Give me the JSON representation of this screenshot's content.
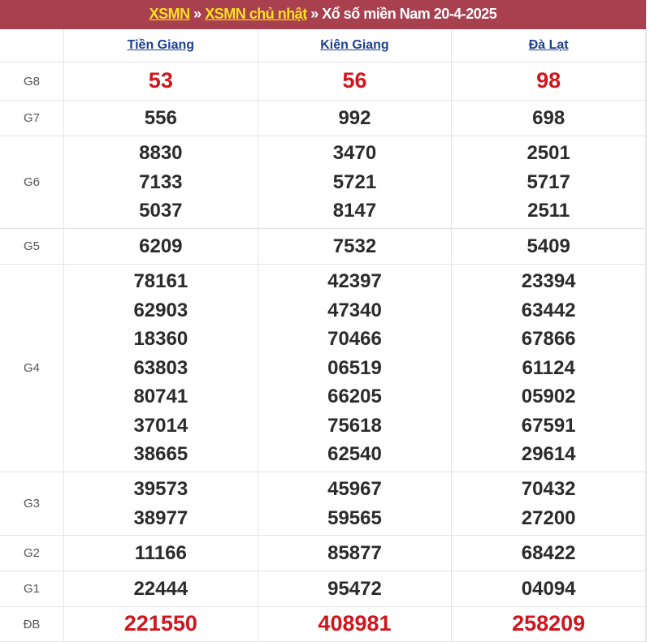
{
  "breadcrumb": {
    "link1": "XSMN",
    "sep": " » ",
    "link2": "XSMN chủ nhật",
    "rest": " » Xổ số miền Nam 20-4-2025"
  },
  "provinces": [
    "Tiền Giang",
    "Kiên Giang",
    "Đà Lạt"
  ],
  "accent_color": "#a8404f",
  "prizes": [
    {
      "label": "G8",
      "highlight": true,
      "values": [
        [
          "53"
        ],
        [
          "56"
        ],
        [
          "98"
        ]
      ]
    },
    {
      "label": "G7",
      "values": [
        [
          "556"
        ],
        [
          "992"
        ],
        [
          "698"
        ]
      ]
    },
    {
      "label": "G6",
      "values": [
        [
          "8830",
          "7133",
          "5037"
        ],
        [
          "3470",
          "5721",
          "8147"
        ],
        [
          "2501",
          "5717",
          "2511"
        ]
      ]
    },
    {
      "label": "G5",
      "values": [
        [
          "6209"
        ],
        [
          "7532"
        ],
        [
          "5409"
        ]
      ]
    },
    {
      "label": "G4",
      "values": [
        [
          "78161",
          "62903",
          "18360",
          "63803",
          "80741",
          "37014",
          "38665"
        ],
        [
          "42397",
          "47340",
          "70466",
          "06519",
          "66205",
          "75618",
          "62540"
        ],
        [
          "23394",
          "63442",
          "67866",
          "61124",
          "05902",
          "67591",
          "29614"
        ]
      ]
    },
    {
      "label": "G3",
      "values": [
        [
          "39573",
          "38977"
        ],
        [
          "45967",
          "59565"
        ],
        [
          "70432",
          "27200"
        ]
      ]
    },
    {
      "label": "G2",
      "values": [
        [
          "11166"
        ],
        [
          "85877"
        ],
        [
          "68422"
        ]
      ]
    },
    {
      "label": "G1",
      "values": [
        [
          "22444"
        ],
        [
          "95472"
        ],
        [
          "04094"
        ]
      ]
    },
    {
      "label": "ĐB",
      "highlight": true,
      "values": [
        [
          "221550"
        ],
        [
          "408981"
        ],
        [
          "258209"
        ]
      ]
    }
  ]
}
